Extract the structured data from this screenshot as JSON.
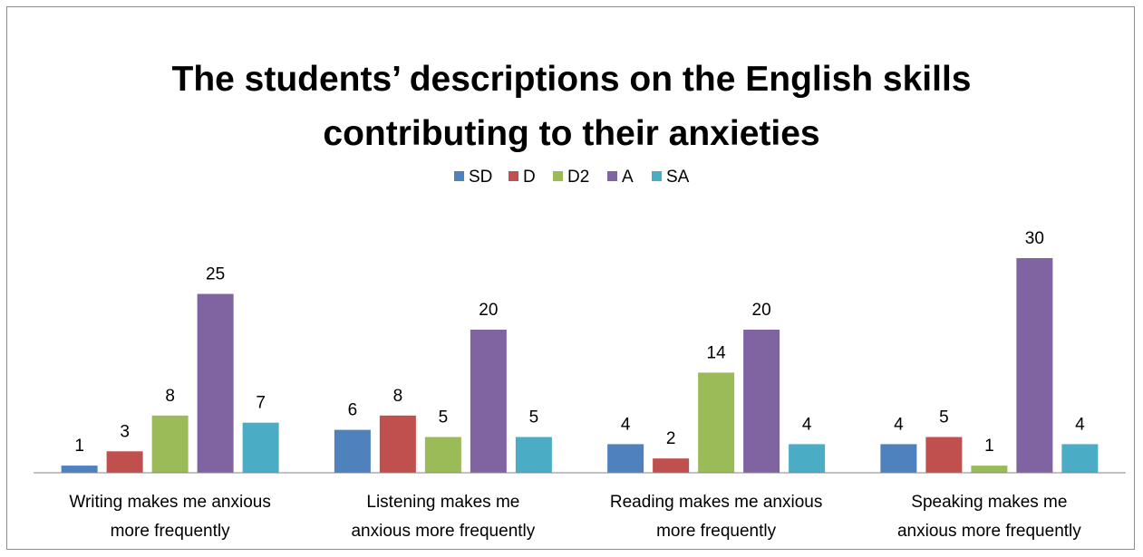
{
  "chart_data": {
    "type": "bar",
    "title_line1": "The students’ descriptions on the English skills",
    "title_line2": "contributing to their anxieties",
    "categories": [
      [
        "Writing makes me anxious",
        "more frequently"
      ],
      [
        "Listening makes me",
        "anxious more frequently"
      ],
      [
        "Reading makes me anxious",
        "more frequently"
      ],
      [
        "Speaking makes me",
        "anxious more frequently"
      ]
    ],
    "series": [
      {
        "name": "SD",
        "color": "#4f81bd",
        "values": [
          1,
          6,
          4,
          4
        ]
      },
      {
        "name": "D",
        "color": "#c0504d",
        "values": [
          3,
          8,
          2,
          5
        ]
      },
      {
        "name": "D2",
        "color": "#9bbb59",
        "values": [
          8,
          5,
          14,
          1
        ]
      },
      {
        "name": "A",
        "color": "#8064a2",
        "values": [
          25,
          20,
          20,
          30
        ]
      },
      {
        "name": "SA",
        "color": "#4bacc6",
        "values": [
          7,
          5,
          4,
          4
        ]
      }
    ],
    "ylim": [
      0,
      30
    ],
    "legend_position": "top",
    "grid": false,
    "data_labels": true
  }
}
